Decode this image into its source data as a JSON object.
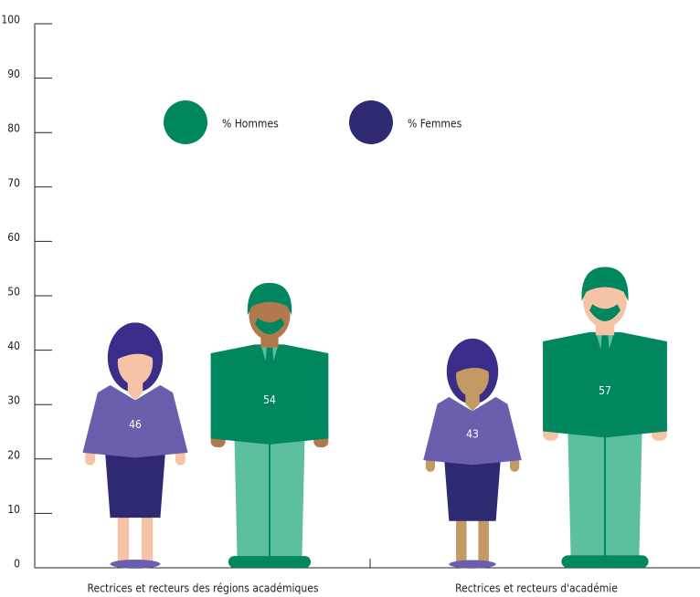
{
  "chart_data": {
    "type": "pictogram",
    "categories": [
      "Rectrices et recteurs des régions académiques",
      "Rectrices et recteurs d'académie"
    ],
    "series": [
      {
        "name": "% Hommes",
        "color": "#00875f",
        "values": [
          54,
          57
        ]
      },
      {
        "name": "% Femmes",
        "color": "#2e2a72",
        "values": [
          46,
          43
        ]
      }
    ],
    "ylim": [
      0,
      100
    ],
    "yticks": [
      0,
      10,
      20,
      30,
      40,
      50,
      60,
      70,
      80,
      90,
      100
    ]
  }
}
